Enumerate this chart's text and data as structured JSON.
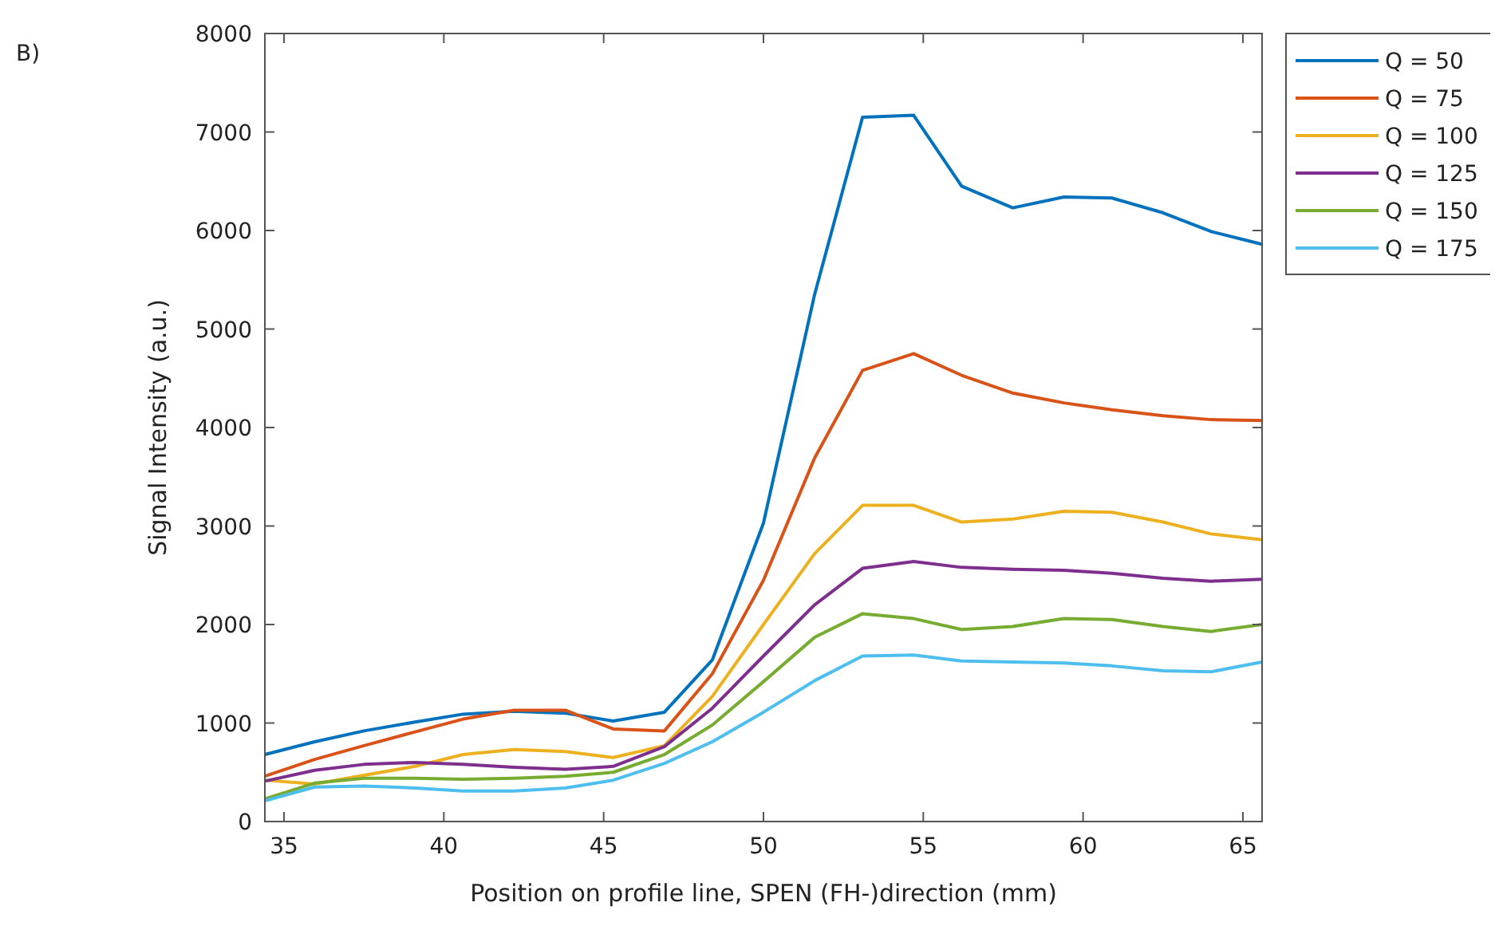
{
  "chart_data": {
    "type": "line",
    "xlabel": "Position on profile line, SPEN (FH-)direction (mm)",
    "ylabel": "Signal Intensity (a.u.)",
    "annotations": [
      "B)"
    ],
    "x": [
      34.4,
      35.96,
      37.5,
      39.1,
      40.6,
      42.2,
      43.8,
      45.3,
      46.9,
      48.4,
      50.0,
      51.6,
      53.1,
      54.7,
      56.2,
      57.8,
      59.4,
      60.9,
      62.5,
      64.0,
      65.6
    ],
    "xlim": [
      34.4,
      65.6
    ],
    "xticks": [
      35,
      40,
      45,
      50,
      55,
      60,
      65
    ],
    "ylim": [
      0,
      8000
    ],
    "yticks": [
      0,
      1000,
      2000,
      3000,
      4000,
      5000,
      6000,
      7000,
      8000
    ],
    "grid": false,
    "legend": "top right",
    "line_style": "solid",
    "marker": "none",
    "series": [
      {
        "name": "Q = 50",
        "color": "#0072bd",
        "values": [
          680,
          810,
          920,
          1010,
          1090,
          1120,
          1100,
          1020,
          1110,
          1640,
          3030,
          5350,
          7150,
          7170,
          6450,
          6230,
          6340,
          6330,
          6180,
          5990,
          5860
        ]
      },
      {
        "name": "Q = 75",
        "color": "#d95319",
        "values": [
          460,
          630,
          770,
          910,
          1040,
          1130,
          1130,
          940,
          920,
          1500,
          2450,
          3690,
          4580,
          4750,
          4530,
          4350,
          4250,
          4180,
          4120,
          4080,
          4070
        ]
      },
      {
        "name": "Q = 100",
        "color": "#edb120",
        "values": [
          420,
          380,
          470,
          560,
          680,
          730,
          710,
          650,
          770,
          1270,
          2000,
          2720,
          3210,
          3210,
          3040,
          3070,
          3150,
          3140,
          3040,
          2920,
          2860
        ]
      },
      {
        "name": "Q = 125",
        "color": "#7e2f8e",
        "values": [
          410,
          520,
          580,
          600,
          580,
          550,
          530,
          560,
          760,
          1150,
          1680,
          2200,
          2570,
          2640,
          2580,
          2560,
          2550,
          2520,
          2470,
          2440,
          2460
        ]
      },
      {
        "name": "Q = 150",
        "color": "#77ac30",
        "values": [
          230,
          390,
          440,
          440,
          430,
          440,
          460,
          500,
          680,
          980,
          1420,
          1870,
          2110,
          2060,
          1950,
          1980,
          2060,
          2050,
          1980,
          1930,
          2000
        ]
      },
      {
        "name": "Q = 175",
        "color": "#4dbeee",
        "values": [
          210,
          350,
          360,
          340,
          310,
          310,
          340,
          420,
          590,
          810,
          1110,
          1430,
          1680,
          1690,
          1630,
          1620,
          1610,
          1580,
          1530,
          1520,
          1620
        ]
      }
    ]
  }
}
